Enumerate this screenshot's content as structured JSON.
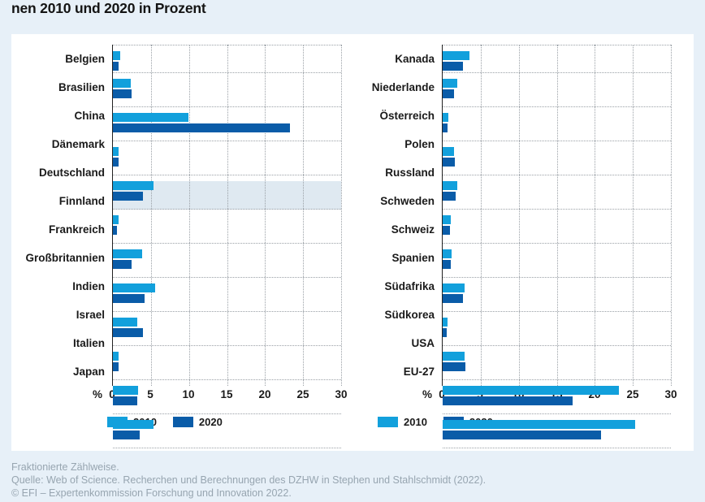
{
  "title": "nen 2010 und 2020 in Prozent",
  "colors": {
    "bar_2010": "#12a0dc",
    "bar_2020": "#0a5ca8",
    "highlight_row_bg": "#dfe9f1",
    "page_bg": "#e7f0f8",
    "panel_bg": "#ffffff",
    "grid_dotted": "#9aa0a6",
    "axis_line": "#222222",
    "footer_text": "#97a5b0",
    "title_text": "#141414"
  },
  "chart_data": [
    {
      "type": "bar",
      "orientation": "horizontal",
      "categories": [
        "Belgien",
        "Brasilien",
        "China",
        "Dänemark",
        "Deutschland",
        "Finnland",
        "Frankreich",
        "Großbritannien",
        "Indien",
        "Israel",
        "Italien",
        "Japan"
      ],
      "series": [
        {
          "name": "2010",
          "color": "#12a0dc",
          "values": [
            1.0,
            2.3,
            9.9,
            0.8,
            5.3,
            0.7,
            3.8,
            5.5,
            3.2,
            0.8,
            3.3,
            5.3
          ]
        },
        {
          "name": "2020",
          "color": "#0a5ca8",
          "values": [
            0.8,
            2.5,
            23.3,
            0.7,
            4.0,
            0.5,
            2.5,
            4.2,
            3.9,
            0.7,
            3.2,
            3.5
          ]
        }
      ],
      "highlight_category": "Deutschland",
      "x_unit_label": "%",
      "xticks": [
        0,
        5,
        10,
        15,
        20,
        25,
        30
      ],
      "xlim": [
        0,
        30
      ],
      "grid": "dotted",
      "legend": [
        "2010",
        "2020"
      ],
      "legend_position": "bottom"
    },
    {
      "type": "bar",
      "orientation": "horizontal",
      "categories": [
        "Kanada",
        "Niederlande",
        "Österreich",
        "Polen",
        "Russland",
        "Schweden",
        "Schweiz",
        "Spanien",
        "Südafrika",
        "Südkorea",
        "USA",
        "EU-27"
      ],
      "series": [
        {
          "name": "2010",
          "color": "#12a0dc",
          "values": [
            3.5,
            1.9,
            0.8,
            1.5,
            1.9,
            1.1,
            1.2,
            2.9,
            0.6,
            2.9,
            23.2,
            25.3
          ]
        },
        {
          "name": "2020",
          "color": "#0a5ca8",
          "values": [
            2.7,
            1.5,
            0.6,
            1.6,
            1.7,
            1.0,
            1.1,
            2.7,
            0.5,
            3.0,
            17.1,
            20.8
          ]
        }
      ],
      "highlight_category": null,
      "x_unit_label": "%",
      "xticks": [
        0,
        5,
        10,
        15,
        20,
        25,
        30
      ],
      "xlim": [
        0,
        30
      ],
      "grid": "dotted",
      "legend": [
        "2010",
        "2020"
      ],
      "legend_position": "bottom"
    }
  ],
  "footer": {
    "line1": "Fraktionierte Zählweise.",
    "line2": "Quelle: Web of Science. Recherchen und Berechnungen des DZHW in Stephen und Stahlschmidt (2022).",
    "line3": "© EFI – Expertenkommission Forschung und Innovation 2022."
  }
}
